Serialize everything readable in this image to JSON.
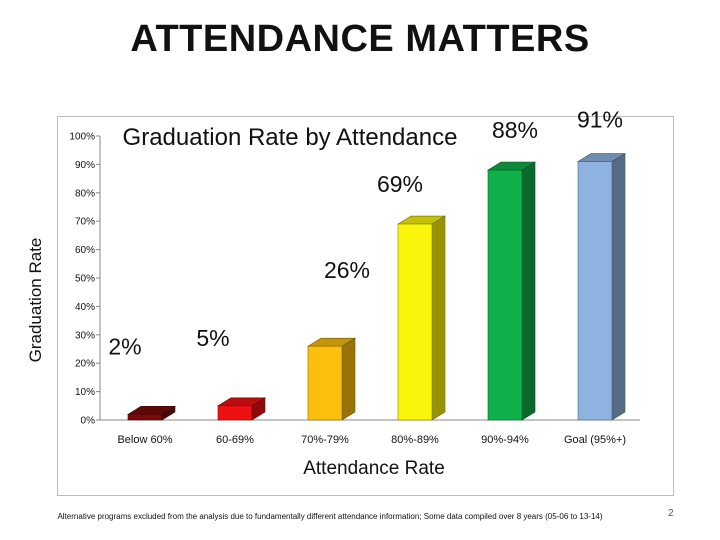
{
  "slide": {
    "title": "ATTENDANCE MATTERS",
    "footnote": "Alternative programs excluded from the analysis due to fundamentally different attendance information; Some data compiled over 8 years (05-06 to 13-14)",
    "page_number": "2"
  },
  "chart_data": {
    "type": "bar",
    "title": "Graduation Rate by Attendance",
    "xlabel": "Attendance Rate",
    "ylabel": "Graduation Rate",
    "categories": [
      "Below 60%",
      "60-69%",
      "70%-79%",
      "80%-89%",
      "90%-94%",
      "Goal (95%+)"
    ],
    "values": [
      2,
      5,
      26,
      69,
      88,
      91
    ],
    "data_labels": [
      "2%",
      "5%",
      "26%",
      "69%",
      "88%",
      "91%"
    ],
    "ylim": [
      0,
      100
    ],
    "yticks": [
      0,
      10,
      20,
      30,
      40,
      50,
      60,
      70,
      80,
      90,
      100
    ],
    "ytick_labels": [
      "0%",
      "10%",
      "20%",
      "30%",
      "40%",
      "50%",
      "60%",
      "70%",
      "80%",
      "90%",
      "100%"
    ],
    "grid": false,
    "colors": [
      "#7a0a0a",
      "#ee1111",
      "#fbbf0e",
      "#fbf50c",
      "#0fb14a",
      "#8fb3e0"
    ]
  }
}
